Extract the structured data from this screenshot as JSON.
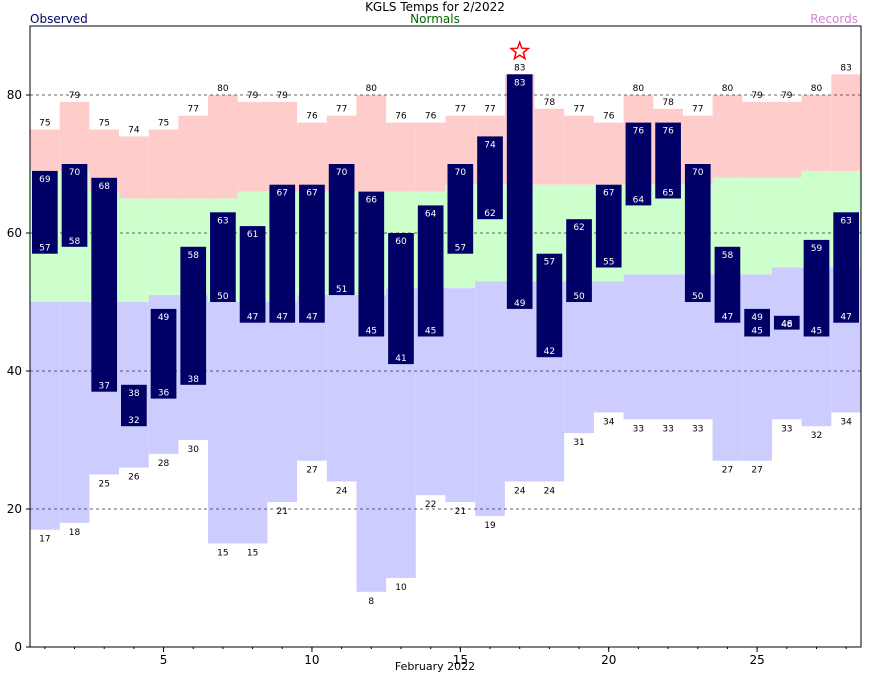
{
  "chart_data": {
    "type": "bar",
    "title": "KGLS Temps for 2/2022",
    "xlabel": "February 2022",
    "ylabel": "",
    "legend": [
      {
        "label": "Observed",
        "color": "#000066"
      },
      {
        "label": "Normals",
        "color": "#006600"
      },
      {
        "label": "Records",
        "color": "#cc88cc"
      }
    ],
    "x_ticks": [
      5,
      10,
      15,
      20,
      25
    ],
    "y_ticks": [
      0,
      20,
      40,
      60,
      80
    ],
    "xlim": [
      0.5,
      28.5
    ],
    "ylim": [
      0,
      90
    ],
    "grid_y": [
      20,
      40,
      60,
      80
    ],
    "days": [
      1,
      2,
      3,
      4,
      5,
      6,
      7,
      8,
      9,
      10,
      11,
      12,
      13,
      14,
      15,
      16,
      17,
      18,
      19,
      20,
      21,
      22,
      23,
      24,
      25,
      26,
      27,
      28
    ],
    "series": [
      {
        "name": "Observed high",
        "values": [
          69,
          70,
          68,
          38,
          49,
          58,
          63,
          61,
          67,
          67,
          70,
          66,
          60,
          64,
          70,
          74,
          83,
          57,
          62,
          67,
          76,
          76,
          70,
          58,
          49,
          48,
          59,
          63
        ]
      },
      {
        "name": "Observed low",
        "values": [
          57,
          58,
          37,
          32,
          36,
          38,
          50,
          47,
          47,
          47,
          51,
          45,
          41,
          45,
          57,
          62,
          49,
          42,
          50,
          55,
          64,
          65,
          50,
          47,
          45,
          46,
          45,
          47
        ]
      },
      {
        "name": "Normal high",
        "values": [
          69,
          69,
          66,
          65,
          65,
          65,
          65,
          66,
          66,
          66,
          66,
          66,
          66,
          66,
          67,
          67,
          67,
          67,
          67,
          67,
          67,
          67,
          67,
          68,
          68,
          68,
          69,
          69
        ]
      },
      {
        "name": "Normal low",
        "values": [
          50,
          50,
          50,
          50,
          51,
          51,
          50,
          50,
          50,
          51,
          51,
          51,
          52,
          52,
          52,
          53,
          53,
          53,
          53,
          53,
          54,
          54,
          54,
          54,
          54,
          55,
          55,
          55
        ]
      },
      {
        "name": "Record high",
        "values": [
          75,
          79,
          75,
          74,
          75,
          77,
          80,
          79,
          79,
          76,
          77,
          80,
          76,
          76,
          77,
          77,
          83,
          78,
          77,
          76,
          80,
          78,
          77,
          80,
          79,
          79,
          80,
          83
        ]
      },
      {
        "name": "Record low",
        "values": [
          17,
          18,
          25,
          26,
          28,
          30,
          15,
          15,
          21,
          27,
          24,
          8,
          10,
          22,
          21,
          19,
          24,
          24,
          31,
          34,
          33,
          33,
          33,
          27,
          27,
          33,
          32,
          34
        ]
      }
    ],
    "annotations": [
      {
        "type": "star",
        "day": 17,
        "value": 83,
        "note": "new record high"
      }
    ],
    "colors": {
      "record_band": "#ffcccc",
      "normal_band": "#ccffcc",
      "below_normal_band": "#ccccff",
      "observed_bar": "#000066",
      "observed_label": "#ffffff",
      "record_label": "#000000",
      "star": "#ff0000",
      "grid": "#333333"
    }
  }
}
